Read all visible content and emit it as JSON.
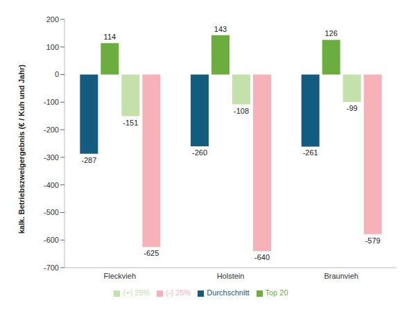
{
  "chart_data": {
    "type": "bar",
    "y_label": "kalk. Betriebszweigergebnis (€ / Kuh und Jahr)",
    "categories": [
      "Fleckvieh",
      "Holstein",
      "Braunvieh"
    ],
    "series": [
      {
        "name": "Durchschnitt",
        "color": "#145b80",
        "values": [
          -287,
          -260,
          -261
        ]
      },
      {
        "name": "Top 20",
        "color": "#6cad3f",
        "values": [
          114,
          143,
          126
        ]
      },
      {
        "name": "(+) 25%",
        "color": "#c4e0ab",
        "values": [
          -151,
          -108,
          -99
        ]
      },
      {
        "name": "(-) 25%",
        "color": "#f7b2b9",
        "values": [
          -625,
          -640,
          -579
        ]
      }
    ],
    "ylim": [
      -700,
      200
    ],
    "yticks": [
      -700,
      -600,
      -500,
      -400,
      -300,
      -200,
      -100,
      0,
      100,
      200
    ],
    "grid": false,
    "legend": "bottom",
    "data_labels": true
  }
}
